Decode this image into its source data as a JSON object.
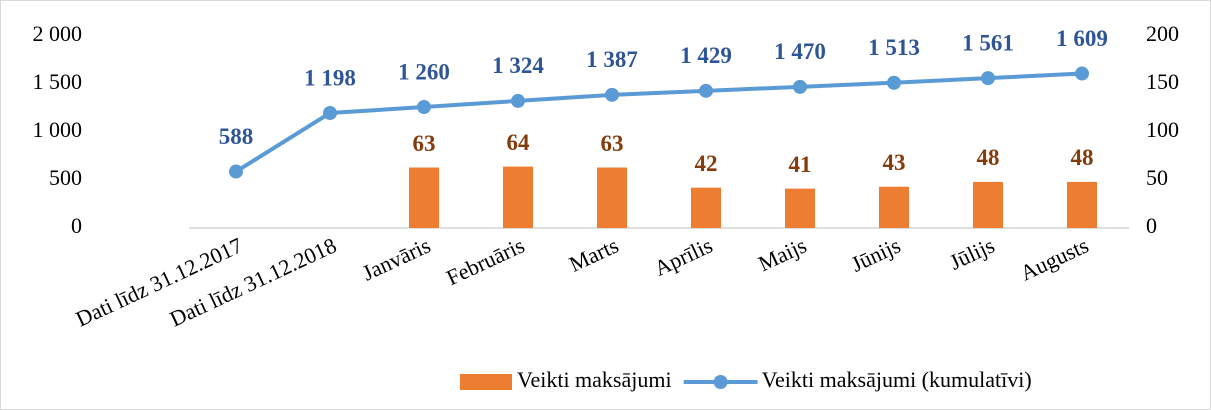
{
  "chart_data": {
    "type": "bar+line",
    "categories": [
      "Dati līdz 31.12.2017",
      "Dati līdz 31.12.2018",
      "Janvāris",
      "Februāris",
      "Marts",
      "Aprīlis",
      "Maijs",
      "Jūnijs",
      "Jūlijs",
      "Augusts"
    ],
    "series": [
      {
        "name": "Veikti maksājumi",
        "type": "bar",
        "color": "#ed7d31",
        "label_color": "#843c0c",
        "axis": "y2",
        "values": [
          null,
          null,
          63,
          64,
          63,
          42,
          41,
          43,
          48,
          48
        ]
      },
      {
        "name": "Veikti maksājumi (kumulatīvi)",
        "type": "line",
        "color": "#5b9bd5",
        "label_color": "#2f5597",
        "axis": "y",
        "values": [
          588,
          1198,
          1260,
          1324,
          1387,
          1429,
          1470,
          1513,
          1561,
          1609
        ],
        "value_labels": [
          "588",
          "1 198",
          "1 260",
          "1 324",
          "1 387",
          "1 429",
          "1 470",
          "1 513",
          "1 561",
          "1 609"
        ]
      }
    ],
    "ylim": [
      0,
      2000
    ],
    "yticks": [
      0,
      500,
      {
        "value": 1000,
        "label": "1 000"
      },
      {
        "value": 1500,
        "label": "1 500"
      },
      {
        "value": 2000,
        "label": "2 000"
      }
    ],
    "y2lim": [
      0,
      200
    ],
    "y2ticks": [
      0,
      50,
      100,
      150,
      200
    ],
    "grid": false,
    "legend": "bottom-right"
  }
}
